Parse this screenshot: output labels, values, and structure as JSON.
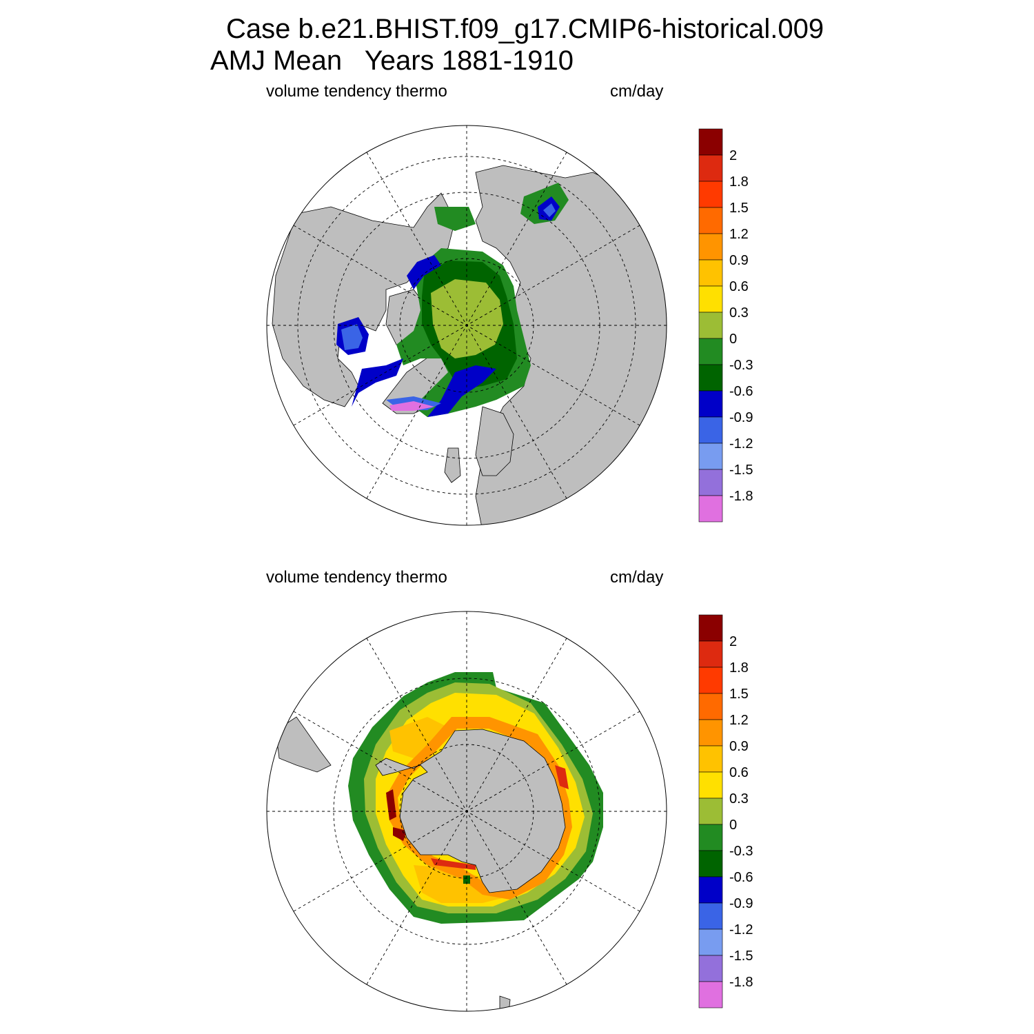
{
  "header": {
    "line1": "Case b.e21.BHIST.f09_g17.CMIP6-historical.009",
    "line2": "AMJ Mean   Years 1881-1910"
  },
  "panels": [
    {
      "id": "north",
      "left_label": "volume tendency thermo",
      "right_label": "cm/day",
      "hemisphere": "north"
    },
    {
      "id": "south",
      "left_label": "volume tendency thermo",
      "right_label": "cm/day",
      "hemisphere": "south"
    }
  ],
  "colorbar": {
    "labels": [
      "2",
      "1.8",
      "1.5",
      "1.2",
      "0.9",
      "0.6",
      "0.3",
      "0",
      "-0.3",
      "-0.6",
      "-0.9",
      "-1.2",
      "-1.5",
      "-1.8"
    ],
    "colors": [
      "#8b0000",
      "#dd2a10",
      "#ff3a00",
      "#ff6a00",
      "#ff9400",
      "#ffc200",
      "#ffe000",
      "#9cbd35",
      "#228b22",
      "#006400",
      "#0000c8",
      "#3a64e6",
      "#789cf0",
      "#9370db",
      "#e070e0"
    ]
  },
  "map_colors": {
    "land": "#bebebe",
    "ocean": "#ffffff",
    "coast": "#000000"
  }
}
